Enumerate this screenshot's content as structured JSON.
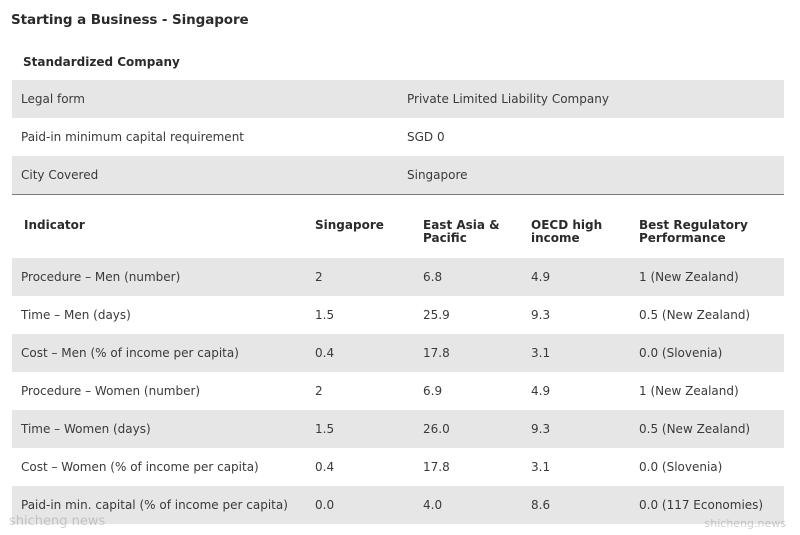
{
  "title": "Starting a Business - Singapore",
  "company": {
    "heading": "Standardized Company",
    "rows": [
      {
        "label": "Legal form",
        "value": "Private Limited Liability Company"
      },
      {
        "label": "Paid-in minimum capital requirement",
        "value": "SGD 0"
      },
      {
        "label": "City Covered",
        "value": "Singapore"
      }
    ]
  },
  "indicators": {
    "headers": [
      "Indicator",
      "Singapore",
      "East Asia & Pacific",
      "OECD high income",
      "Best Regulatory Performance"
    ],
    "rows": [
      [
        "Procedure – Men (number)",
        "2",
        "6.8",
        "4.9",
        "1 (New Zealand)"
      ],
      [
        "Time – Men (days)",
        "1.5",
        "25.9",
        "9.3",
        "0.5 (New Zealand)"
      ],
      [
        "Cost – Men (% of income per capita)",
        "0.4",
        "17.8",
        "3.1",
        "0.0 (Slovenia)"
      ],
      [
        "Procedure – Women (number)",
        "2",
        "6.9",
        "4.9",
        "1 (New Zealand)"
      ],
      [
        "Time – Women (days)",
        "1.5",
        "26.0",
        "9.3",
        "0.5 (New Zealand)"
      ],
      [
        "Cost – Women (% of income per capita)",
        "0.4",
        "17.8",
        "3.1",
        "0.0 (Slovenia)"
      ],
      [
        "Paid-in min. capital (% of income per capita)",
        "0.0",
        "4.0",
        "8.6",
        "0.0 (117 Economies)"
      ]
    ]
  },
  "watermark": {
    "left": "shicheng news",
    "right": "shicheng.news"
  }
}
